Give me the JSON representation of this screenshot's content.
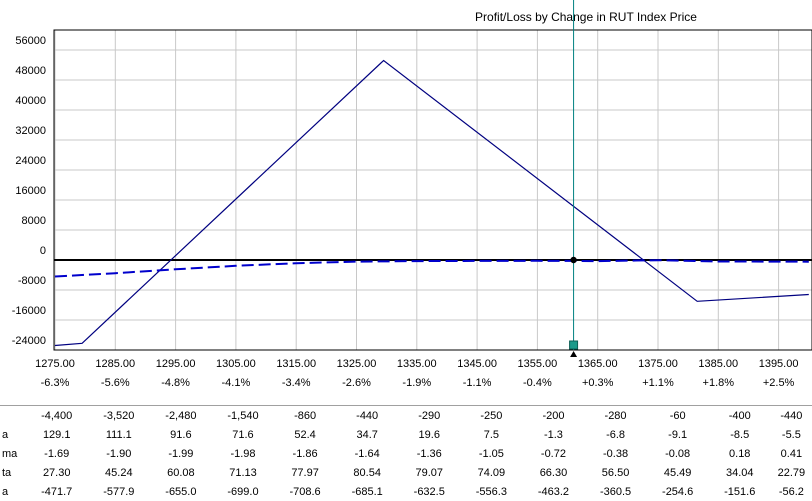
{
  "chart_data": {
    "type": "line",
    "title": "Profit/Loss by Change in RUT Index Price",
    "xlim": [
      1275,
      1400
    ],
    "ylim": [
      -25000,
      62000
    ],
    "x_ticks": [
      1275,
      1285,
      1295,
      1305,
      1315,
      1325,
      1335,
      1345,
      1355,
      1365,
      1375,
      1385,
      1395
    ],
    "x_tick_labels": [
      "1275.00",
      "1285.00",
      "1295.00",
      "1305.00",
      "1315.00",
      "1325.00",
      "1335.00",
      "1345.00",
      "1355.00",
      "1365.00",
      "1375.00",
      "1385.00",
      "1395.00"
    ],
    "pct_labels": [
      "-6.3%",
      "-5.6%",
      "-4.8%",
      "-4.1%",
      "-3.4%",
      "-2.6%",
      "-1.9%",
      "-1.1%",
      "-0.4%",
      "+0.3%",
      "+1.1%",
      "+1.8%",
      "+2.5%"
    ],
    "y_ticks": [
      56000,
      48000,
      40000,
      32000,
      24000,
      16000,
      8000,
      0,
      -8000,
      -16000,
      -24000
    ],
    "y_tick_labels": [
      "56000",
      "48000",
      "40000",
      "32000",
      "24000",
      "16000",
      "8000",
      "0",
      "-8000",
      "-16000",
      "-24000"
    ],
    "current_price": 1361,
    "grid": true,
    "series": [
      {
        "style": "solid",
        "color": "#000080",
        "x": [
          1275,
          1279.5,
          1329.5,
          1381.5,
          1400
        ],
        "y": [
          -22800,
          -22200,
          53200,
          -11000,
          -9200
        ]
      },
      {
        "style": "dashed",
        "color": "#0000cc",
        "x": [
          1275,
          1285,
          1295,
          1305,
          1315,
          1325,
          1335,
          1345,
          1355,
          1361,
          1365,
          1375,
          1385,
          1395,
          1400
        ],
        "y": [
          -4400,
          -3520,
          -2480,
          -1540,
          -860,
          -440,
          -290,
          -250,
          -200,
          -240,
          -280,
          -60,
          -400,
          -440,
          -460
        ]
      }
    ]
  },
  "table": {
    "rows": [
      {
        "label": "",
        "values": [
          "-4,400",
          "-3,520",
          "-2,480",
          "-1,540",
          "-860",
          "-440",
          "-290",
          "-250",
          "-200",
          "-280",
          "-60",
          "-400",
          "-440"
        ]
      },
      {
        "label": "a",
        "values": [
          "129.1",
          "111.1",
          "91.6",
          "71.6",
          "52.4",
          "34.7",
          "19.6",
          "7.5",
          "-1.3",
          "-6.8",
          "-9.1",
          "-8.5",
          "-5.5"
        ]
      },
      {
        "label": "ma",
        "values": [
          "-1.69",
          "-1.90",
          "-1.99",
          "-1.98",
          "-1.86",
          "-1.64",
          "-1.36",
          "-1.05",
          "-0.72",
          "-0.38",
          "-0.08",
          "0.18",
          "0.41"
        ]
      },
      {
        "label": "ta",
        "values": [
          "27.30",
          "45.24",
          "60.08",
          "71.13",
          "77.97",
          "80.54",
          "79.07",
          "74.09",
          "66.30",
          "56.50",
          "45.49",
          "34.04",
          "22.79"
        ]
      },
      {
        "label": "a",
        "values": [
          "-471.7",
          "-577.9",
          "-655.0",
          "-699.0",
          "-708.6",
          "-685.1",
          "-632.5",
          "-556.3",
          "-463.2",
          "-360.5",
          "-254.6",
          "-151.6",
          "-56.2"
        ]
      }
    ]
  }
}
